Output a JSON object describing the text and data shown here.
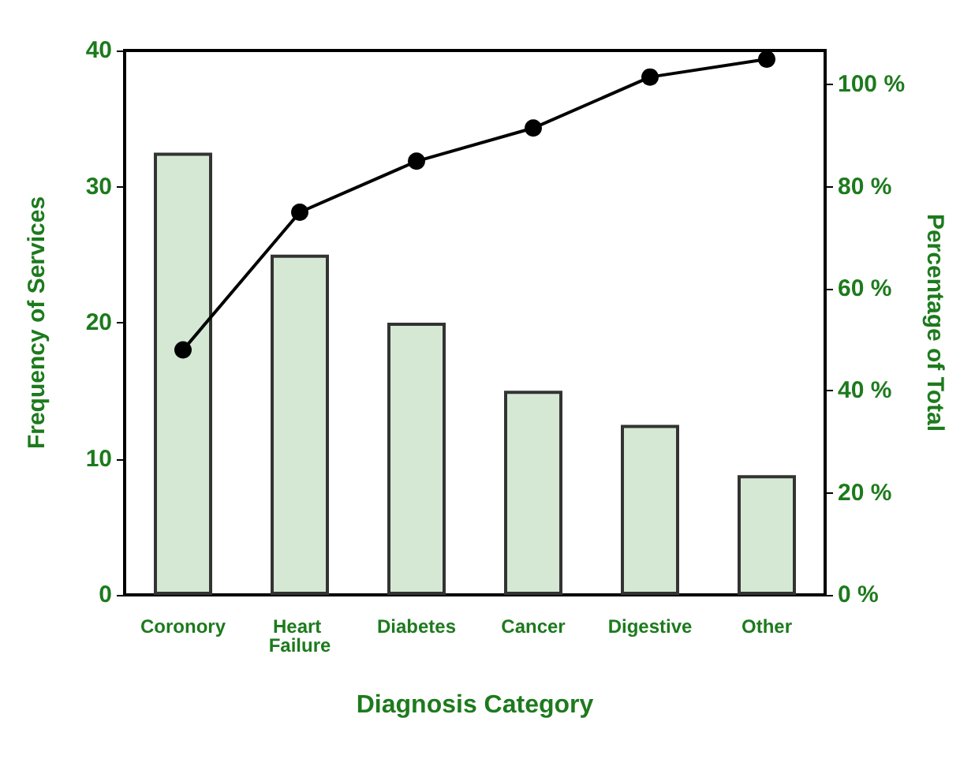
{
  "chart_data": {
    "type": "bar",
    "xlabel": "Diagnosis Category",
    "ylabel": "Frequency of Services",
    "y2label": "Percentage of Total",
    "categories": [
      "Coronory",
      "Heart Failure",
      "Diabetes",
      "Cancer",
      "Digestive",
      "Other"
    ],
    "series": [
      {
        "color": "#d5e8d4",
        "values": [
          32.5,
          25,
          20,
          15,
          12.5,
          8.8
        ]
      },
      {
        "type": "line",
        "axis": "y2",
        "color": "#000000",
        "marker": "circle",
        "values": [
          48,
          75,
          85,
          91.5,
          101.5,
          105
        ]
      }
    ],
    "ylim": [
      0,
      40
    ],
    "yticks": [
      0,
      10,
      20,
      30,
      40
    ],
    "y2lim": [
      0,
      106.7
    ],
    "y2ticks": [
      {
        "value": 0,
        "label": "0 %"
      },
      {
        "value": 20,
        "label": "20 %"
      },
      {
        "value": 40,
        "label": "40 %"
      },
      {
        "value": 60,
        "label": "60 %"
      },
      {
        "value": 80,
        "label": "80 %"
      },
      {
        "value": 100,
        "label": "100 %"
      }
    ],
    "grid": false
  }
}
